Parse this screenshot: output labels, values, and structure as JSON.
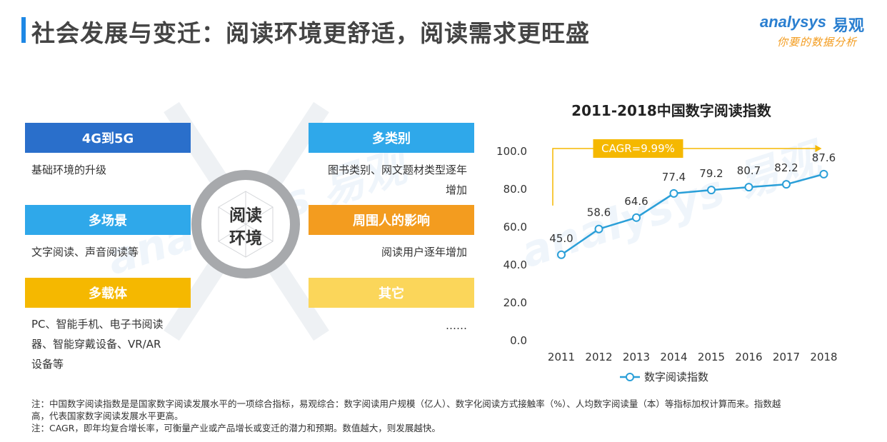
{
  "header": {
    "title": "社会发展与变迁：阅读环境更舒适，阅读需求更旺盛",
    "logo_en": "analysys",
    "logo_cn": "易观",
    "logo_sub": "你要的数据分析"
  },
  "left_panel": {
    "center": [
      "阅读",
      "环境"
    ],
    "categories": [
      {
        "label": "4G到5G",
        "desc": [
          "基础环境的升级"
        ],
        "color": "#2a6fcb"
      },
      {
        "label": "多场景",
        "desc": [
          "文字阅读、声音阅读等"
        ],
        "color": "#2fa8ea"
      },
      {
        "label": "多载体",
        "desc": [
          "PC、智能手机、电子书阅读",
          "器、智能穿戴设备、VR/AR",
          "设备等"
        ],
        "color": "#f5b800"
      },
      {
        "label": "多类别",
        "desc": [
          "图书类别、网文题材类型逐年",
          "增加"
        ],
        "color": "#2fa8ea"
      },
      {
        "label": "周围人的影响",
        "desc": [
          "阅读用户逐年增加"
        ],
        "color": "#f39c1f"
      },
      {
        "label": "其它",
        "desc": [
          "……"
        ],
        "color": "#fbd65a"
      }
    ]
  },
  "chart_data": {
    "type": "line",
    "title": "2011-2018中国数字阅读指数",
    "categories": [
      "2011",
      "2012",
      "2013",
      "2014",
      "2015",
      "2016",
      "2017",
      "2018"
    ],
    "series": [
      {
        "name": "数字阅读指数",
        "values": [
          45.0,
          58.6,
          64.6,
          77.4,
          79.2,
          80.7,
          82.2,
          87.6
        ],
        "color": "#2a9fd8"
      }
    ],
    "data_labels": [
      "45.0",
      "58.6",
      "64.6",
      "77.4",
      "79.2",
      "80.7",
      "82.2",
      "87.6"
    ],
    "ylim": [
      0,
      100
    ],
    "yticks": [
      "0.0",
      "20.0",
      "40.0",
      "60.0",
      "80.0",
      "100.0"
    ],
    "annotation": "CAGR=9.99%",
    "annotation_color": "#f5b800",
    "legend_position": "bottom",
    "grid": false
  },
  "notes": [
    "注：中国数字阅读指数是是国家数字阅读发展水平的一项综合指标，易观综合：数字阅读用户规模（亿人）、数字化阅读方式接触率（%）、人均数字阅读量（本）等指标加权计算而来。指数越",
    "高，代表国家数字阅读发展水平更高。",
    "注：CAGR，即年均复合增长率，可衡量产业或产品增长或变迁的潜力和预期。数值越大，则发展越快。"
  ]
}
